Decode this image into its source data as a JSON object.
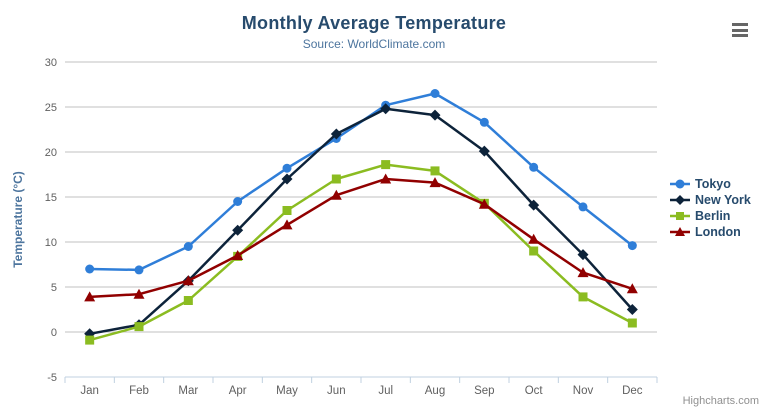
{
  "header": {
    "title": "Monthly Average Temperature",
    "subtitle": "Source: WorldClimate.com"
  },
  "credits": "Highcharts.com",
  "export_menu": {
    "icon": "hamburger-menu-icon"
  },
  "colors": {
    "title": "#274b6d",
    "subtitle": "#4d759e",
    "axis_label": "#606060",
    "axis_title": "#4d759e",
    "grid": "#c0c0c0",
    "axis_line": "#c0d0e0",
    "legend_text": "#274b6d",
    "credits_text": "#909090",
    "menu_icon": "#666666",
    "background": "#ffffff"
  },
  "chart_data": {
    "type": "line",
    "title": "Monthly Average Temperature",
    "subtitle": "Source: WorldClimate.com",
    "categories": [
      "Jan",
      "Feb",
      "Mar",
      "Apr",
      "May",
      "Jun",
      "Jul",
      "Aug",
      "Sep",
      "Oct",
      "Nov",
      "Dec"
    ],
    "series": [
      {
        "name": "Tokyo",
        "color": "#2f7ed8",
        "marker": "circle",
        "values": [
          7.0,
          6.9,
          9.5,
          14.5,
          18.2,
          21.5,
          25.2,
          26.5,
          23.3,
          18.3,
          13.9,
          9.6
        ]
      },
      {
        "name": "New York",
        "color": "#0d233a",
        "marker": "diamond",
        "values": [
          -0.2,
          0.8,
          5.7,
          11.3,
          17.0,
          22.0,
          24.8,
          24.1,
          20.1,
          14.1,
          8.6,
          2.5
        ]
      },
      {
        "name": "Berlin",
        "color": "#8bbc21",
        "marker": "square",
        "values": [
          -0.9,
          0.6,
          3.5,
          8.4,
          13.5,
          17.0,
          18.6,
          17.9,
          14.3,
          9.0,
          3.9,
          1.0
        ]
      },
      {
        "name": "London",
        "color": "#910000",
        "marker": "triangle",
        "values": [
          3.9,
          4.2,
          5.7,
          8.5,
          11.9,
          15.2,
          17.0,
          16.6,
          14.2,
          10.3,
          6.6,
          4.8
        ]
      }
    ],
    "xlabel": "",
    "ylabel": "Temperature (°C)",
    "ylim": [
      -5,
      30
    ],
    "ytick_interval": 5,
    "grid": "horizontal",
    "legend_position": "right"
  }
}
